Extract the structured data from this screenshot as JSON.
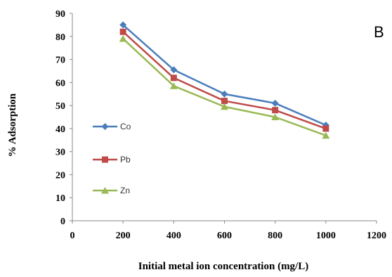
{
  "chart_data": {
    "type": "line",
    "panel_label": "B",
    "xlabel": "Initial metal ion concentration (mg/L)",
    "ylabel": "% Adsorption",
    "xlim": [
      0,
      1200
    ],
    "ylim": [
      0,
      90
    ],
    "x_ticks": [
      "0",
      "200",
      "400",
      "600",
      "800",
      "1000",
      "1200"
    ],
    "y_ticks": [
      "0",
      "10",
      "20",
      "30",
      "40",
      "50",
      "60",
      "70",
      "80",
      "90"
    ],
    "x": [
      200,
      400,
      600,
      800,
      1000
    ],
    "grid": false,
    "legend_position": "left",
    "series": [
      {
        "name": "Co",
        "color": "#4a7ebb",
        "marker": "diamond",
        "values": [
          85,
          65.5,
          55,
          51,
          41.5
        ]
      },
      {
        "name": "Pb",
        "color": "#be4b48",
        "marker": "square",
        "values": [
          82,
          62,
          52,
          48,
          40
        ]
      },
      {
        "name": "Zn",
        "color": "#98b954",
        "marker": "triangle",
        "values": [
          79,
          58.5,
          49.5,
          45,
          37
        ]
      }
    ]
  }
}
